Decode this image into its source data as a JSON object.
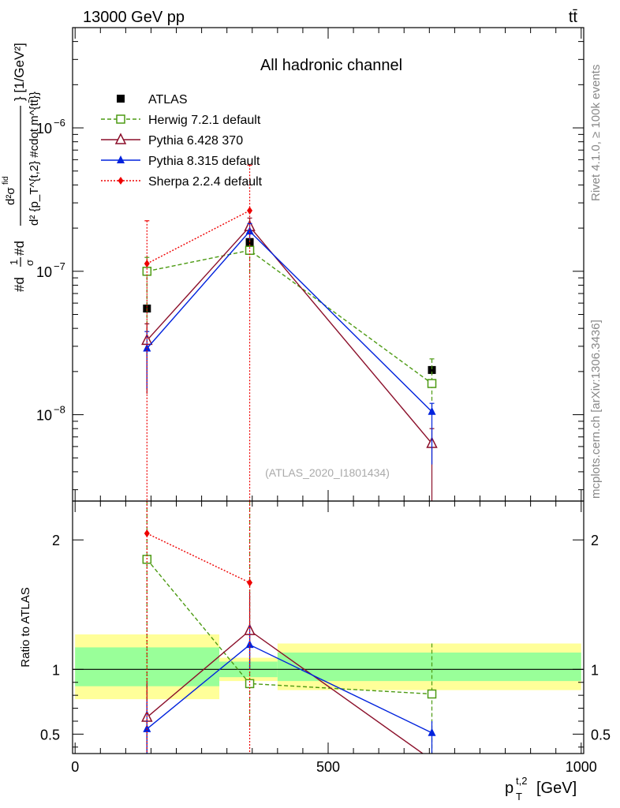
{
  "header": {
    "left": "13000 GeV pp",
    "right": "tt̄",
    "channel": "All hadronic channel",
    "watermark": "(ATLAS_2020_I1801434)",
    "side_rivet": "Rivet 4.1.0, ≥ 100k events",
    "side_mcplots": "mcplots.cern.ch [arXiv:1306.3436]"
  },
  "chart_data": {
    "type": "scatter",
    "title": "All hadronic channel",
    "xlabel": "p_T^{t,2} [GeV]",
    "ylabel": "#d\\frac{1}{\\sigma}#d\\frac{d^{2}\\sigma^{\\rm fid}}{d^{2} {p_T^{t,2} #cdot m^{t\\bar{t}}}} [1/GeV^{2}]",
    "ratio_ylabel": "Ratio to ATLAS",
    "xlim": [
      -5,
      1005
    ],
    "ylim": [
      2.5e-09,
      5e-06
    ],
    "ylog": true,
    "ratio_ylim": [
      0.35,
      2.3
    ],
    "x_ticks": [
      0,
      500,
      1000
    ],
    "x_tick_labels": [
      "0",
      "500",
      "1000"
    ],
    "y_ticks": [
      1e-06,
      1e-07,
      1e-08
    ],
    "y_tick_labels": [
      "10^{-6}",
      "10^{-7}",
      "10^{-8}"
    ],
    "ratio_ticks": [
      0.5,
      1,
      2
    ],
    "ratio_tick_labels": [
      "0.5",
      "1",
      "2"
    ],
    "bins": [
      {
        "low": 0,
        "high": 285
      },
      {
        "low": 285,
        "high": 400
      },
      {
        "low": 400,
        "high": 1000
      }
    ],
    "ratio_bands": [
      {
        "x0": 0,
        "x1": 285,
        "y1lo": 0.87,
        "y1hi": 1.17,
        "y2lo": 0.77,
        "y2hi": 1.27
      },
      {
        "x0": 285,
        "x1": 400,
        "y1lo": 0.94,
        "y1hi": 1.06,
        "y2lo": 0.91,
        "y2hi": 1.09
      },
      {
        "x0": 400,
        "x1": 1000,
        "y1lo": 0.91,
        "y1hi": 1.13,
        "y2lo": 0.84,
        "y2hi": 1.2
      }
    ],
    "series": [
      {
        "name": "ATLAS",
        "style": "data",
        "color": "#000000",
        "marker": "square-filled",
        "dash": "",
        "x": [
          142,
          345,
          705
        ],
        "y": [
          5.5e-08,
          1.6e-07,
          2.05e-08
        ],
        "err_up": [
          5.6e-08,
          1.68e-07,
          2.15e-08
        ],
        "err_dn": [
          5.4e-08,
          1.52e-07,
          1.95e-08
        ],
        "ratio": [
          1,
          1,
          1
        ]
      },
      {
        "name": "Herwig 7.2.1 default",
        "color": "#4c9a12",
        "marker": "square-open",
        "dash": "5,3",
        "x": [
          142,
          345,
          705
        ],
        "y": [
          1e-07,
          1.4e-07,
          1.65e-08
        ],
        "err_up": [
          1.25e-07,
          1.9e-07,
          2.45e-08
        ],
        "err_dn": [
          2.5e-08,
          9e-08,
          1e-08
        ],
        "ratio": [
          1.85,
          0.89,
          0.81
        ],
        "ratio_err_up": [
          2.3,
          2.3,
          1.2
        ],
        "ratio_err_dn": [
          0.35,
          0.56,
          0.35
        ]
      },
      {
        "name": "Pythia 6.428 370",
        "color": "#8b0f2a",
        "marker": "triangle-open",
        "dash": "",
        "x": [
          142,
          345,
          705
        ],
        "y": [
          3.3e-08,
          2.05e-07,
          6.3e-09
        ],
        "err_up": [
          4.3e-08,
          2.35e-07,
          8e-09
        ],
        "err_dn": [
          1.4e-08,
          1.7e-07,
          2.5e-09
        ],
        "ratio": [
          0.63,
          1.3,
          0.3
        ],
        "ratio_err_up": [
          0.9,
          1.6,
          0.3
        ],
        "ratio_err_dn": [
          0.35,
          1.0,
          0.3
        ]
      },
      {
        "name": "Pythia 8.315 default",
        "color": "#0022dd",
        "marker": "triangle-filled",
        "dash": "",
        "x": [
          142,
          345,
          705
        ],
        "y": [
          2.9e-08,
          1.9e-07,
          1.05e-08
        ],
        "err_up": [
          3.8e-08,
          2.15e-07,
          1.2e-08
        ],
        "err_dn": [
          1.5e-08,
          1.65e-07,
          4.5e-09
        ],
        "ratio": [
          0.54,
          1.19,
          0.51
        ],
        "ratio_err_up": [
          0.75,
          1.35,
          0.6
        ],
        "ratio_err_dn": [
          0.35,
          1.0,
          0.35
        ]
      },
      {
        "name": "Sherpa 2.2.4 default",
        "color": "#ee0000",
        "marker": "diamond-filled",
        "dash": "2,2",
        "x": [
          142,
          345,
          705
        ],
        "y": [
          1.13e-07,
          2.65e-07,
          null
        ],
        "err_up": [
          2.25e-07,
          5.5e-07,
          null
        ],
        "err_dn": [
          2.5e-09,
          2.5e-09,
          null
        ],
        "ratio": [
          2.05,
          1.67,
          null
        ],
        "ratio_err_up": [
          2.3,
          2.3,
          null
        ],
        "ratio_err_dn": [
          0.35,
          0.35,
          null
        ]
      }
    ]
  }
}
